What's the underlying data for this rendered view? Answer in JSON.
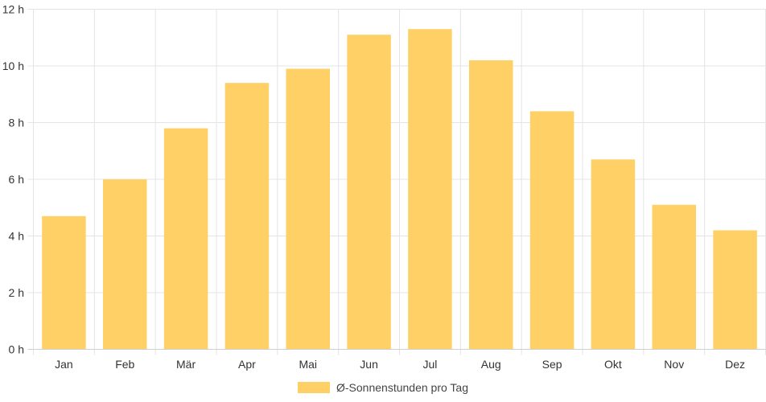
{
  "chart_data": {
    "type": "bar",
    "categories": [
      "Jan",
      "Feb",
      "Mär",
      "Apr",
      "Mai",
      "Jun",
      "Jul",
      "Aug",
      "Sep",
      "Okt",
      "Nov",
      "Dez"
    ],
    "series": [
      {
        "name": "Ø-Sonnenstunden pro Tag",
        "values": [
          4.7,
          6.0,
          7.8,
          9.4,
          9.9,
          11.1,
          11.3,
          10.2,
          8.4,
          6.7,
          5.1,
          4.2
        ],
        "color": "#fed065"
      }
    ],
    "y_ticks": [
      "0 h",
      "2 h",
      "4 h",
      "6 h",
      "8 h",
      "10 h",
      "12 h"
    ],
    "ylim": [
      0,
      12
    ],
    "grid": true,
    "legend_position": "bottom",
    "grid_color": "#e4e4e4",
    "axis_color": "#cfcfcf"
  }
}
